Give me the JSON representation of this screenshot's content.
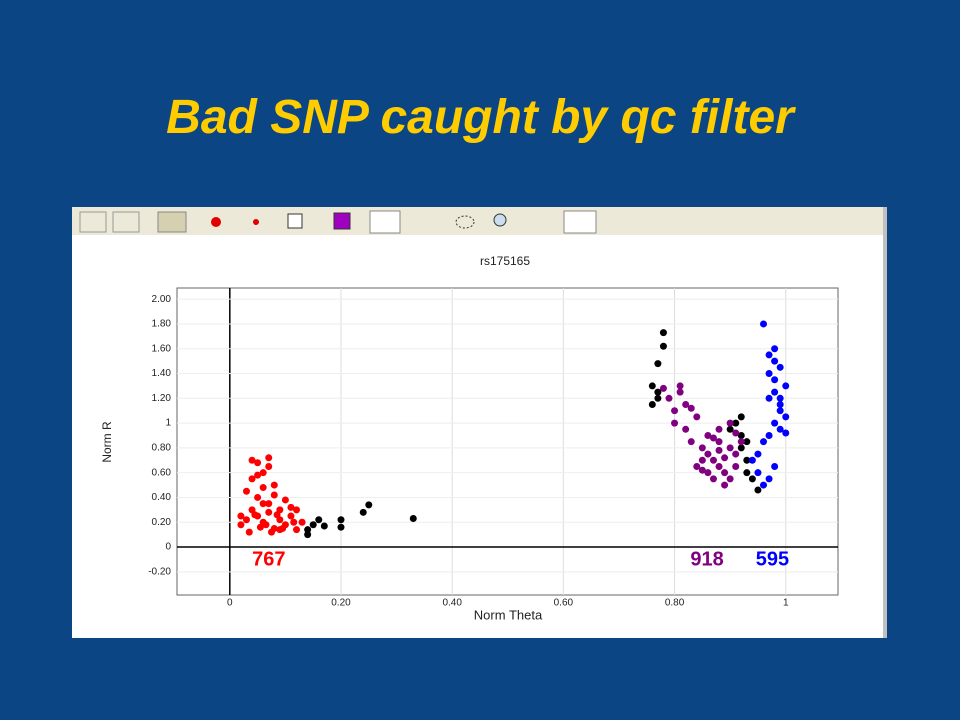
{
  "title": "Bad SNP caught by qc filter",
  "chart_data": {
    "type": "scatter",
    "title": "rs175165",
    "x_label": "Norm Theta",
    "y_label": "Norm R",
    "xlim": [
      -0.095,
      1.094
    ],
    "ylim": [
      -0.387,
      2.09
    ],
    "grid": true,
    "xticks": [
      0,
      {
        "value": 0.2,
        "label": "0.20"
      },
      {
        "value": 0.4,
        "label": "0.40"
      },
      {
        "value": 0.6,
        "label": "0.60"
      },
      {
        "value": 0.8,
        "label": "0.80"
      },
      1
    ],
    "yticks": [
      {
        "value": -0.2,
        "label": "-0.20"
      },
      0,
      {
        "value": 0.2,
        "label": "0.20"
      },
      {
        "value": 0.4,
        "label": "0.40"
      },
      {
        "value": 0.6,
        "label": "0.60"
      },
      {
        "value": 0.8,
        "label": "0.80"
      },
      1,
      {
        "value": 1.2,
        "label": "1.20"
      },
      {
        "value": 1.4,
        "label": "1.40"
      },
      {
        "value": 1.6,
        "label": "1.60"
      },
      {
        "value": 1.8,
        "label": "1.80"
      },
      {
        "value": 2,
        "label": "2.00"
      }
    ],
    "series": [
      {
        "color": "#ff0000",
        "count": "767",
        "x": [
          0.02,
          0.03,
          0.04,
          0.05,
          0.06,
          0.07,
          0.08,
          0.09,
          0.1,
          0.11,
          0.12,
          0.13,
          0.03,
          0.05,
          0.07,
          0.09,
          0.11,
          0.04,
          0.06,
          0.08,
          0.1,
          0.05,
          0.07,
          0.04,
          0.06,
          0.08,
          0.05,
          0.07,
          0.06,
          0.09,
          0.12,
          0.02,
          0.035,
          0.055,
          0.075,
          0.095,
          0.115,
          0.045,
          0.065,
          0.085
        ],
        "values": [
          0.18,
          0.22,
          0.3,
          0.25,
          0.2,
          0.28,
          0.15,
          0.22,
          0.18,
          0.25,
          0.14,
          0.2,
          0.45,
          0.4,
          0.35,
          0.3,
          0.32,
          0.55,
          0.6,
          0.5,
          0.38,
          0.68,
          0.65,
          0.7,
          0.48,
          0.42,
          0.58,
          0.72,
          0.35,
          0.14,
          0.3,
          0.25,
          0.12,
          0.16,
          0.12,
          0.15,
          0.2,
          0.26,
          0.18,
          0.26
        ]
      },
      {
        "color": "#000000",
        "x": [
          0.14,
          0.15,
          0.16,
          0.17,
          0.2,
          0.2,
          0.24,
          0.25,
          0.33,
          0.14,
          0.76,
          0.77,
          0.77,
          0.78,
          0.78,
          0.76,
          0.77,
          0.9,
          0.91,
          0.92,
          0.92,
          0.93,
          0.93,
          0.94,
          0.95,
          0.92,
          0.93
        ],
        "values": [
          0.1,
          0.18,
          0.22,
          0.17,
          0.22,
          0.16,
          0.28,
          0.34,
          0.23,
          0.14,
          1.3,
          1.2,
          1.48,
          1.73,
          1.62,
          1.15,
          1.25,
          0.95,
          1.0,
          0.9,
          0.8,
          0.7,
          0.6,
          0.55,
          0.46,
          1.05,
          0.85
        ]
      },
      {
        "color": "#800080",
        "count": "918",
        "x": [
          0.78,
          0.79,
          0.8,
          0.81,
          0.82,
          0.8,
          0.82,
          0.84,
          0.83,
          0.85,
          0.86,
          0.87,
          0.88,
          0.89,
          0.9,
          0.86,
          0.88,
          0.9,
          0.91,
          0.87,
          0.89,
          0.91,
          0.85,
          0.88,
          0.9,
          0.84,
          0.86,
          0.88,
          0.92,
          0.89,
          0.83,
          0.81,
          0.87,
          0.91,
          0.85
        ],
        "values": [
          1.28,
          1.2,
          1.1,
          1.25,
          1.15,
          1.0,
          0.95,
          1.05,
          0.85,
          0.8,
          0.75,
          0.7,
          0.65,
          0.6,
          0.55,
          0.9,
          0.85,
          0.8,
          0.75,
          0.55,
          0.5,
          0.65,
          0.7,
          0.95,
          1.0,
          0.65,
          0.6,
          0.78,
          0.85,
          0.72,
          1.12,
          1.3,
          0.88,
          0.92,
          0.62
        ]
      },
      {
        "color": "#0000ff",
        "count": "595",
        "x": [
          0.96,
          0.97,
          0.98,
          0.99,
          1.0,
          0.97,
          0.98,
          0.99,
          1.0,
          0.98,
          0.99,
          0.97,
          0.98,
          1.0,
          0.99,
          0.96,
          0.97,
          0.98,
          0.95,
          0.94,
          0.95,
          0.96,
          0.98,
          0.99,
          0.97
        ],
        "values": [
          1.8,
          1.55,
          1.6,
          1.45,
          1.3,
          1.4,
          1.25,
          1.15,
          1.05,
          1.0,
          0.95,
          1.2,
          1.35,
          0.92,
          1.1,
          0.5,
          0.55,
          0.65,
          0.6,
          0.7,
          0.75,
          0.85,
          1.5,
          1.2,
          0.9
        ]
      }
    ]
  }
}
